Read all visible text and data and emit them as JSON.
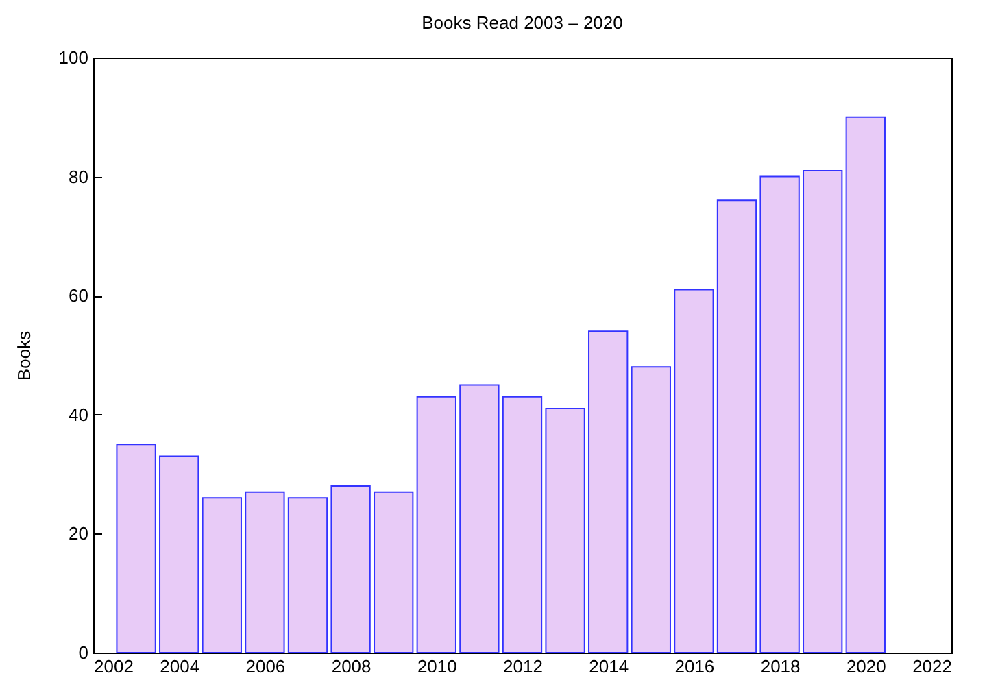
{
  "chart_data": {
    "type": "bar",
    "title": "Books Read 2003 – 2020",
    "ylabel": "Books",
    "x": [
      2003,
      2004,
      2005,
      2006,
      2007,
      2008,
      2009,
      2010,
      2011,
      2012,
      2013,
      2014,
      2015,
      2016,
      2017,
      2018,
      2019,
      2020
    ],
    "series": [
      {
        "color": "#e8cbf7",
        "values": [
          35,
          33,
          26,
          27,
          26,
          28,
          27,
          43,
          45,
          43,
          41,
          54,
          48,
          61,
          76,
          80,
          81,
          90
        ]
      }
    ],
    "xlim": [
      2002,
      2022
    ],
    "xticks": [
      2002,
      2004,
      2006,
      2008,
      2010,
      2012,
      2014,
      2016,
      2018,
      2020,
      2022
    ],
    "ylim": [
      0,
      100
    ],
    "yticks": [
      0,
      20,
      40,
      60,
      80,
      100
    ],
    "grid": false
  }
}
